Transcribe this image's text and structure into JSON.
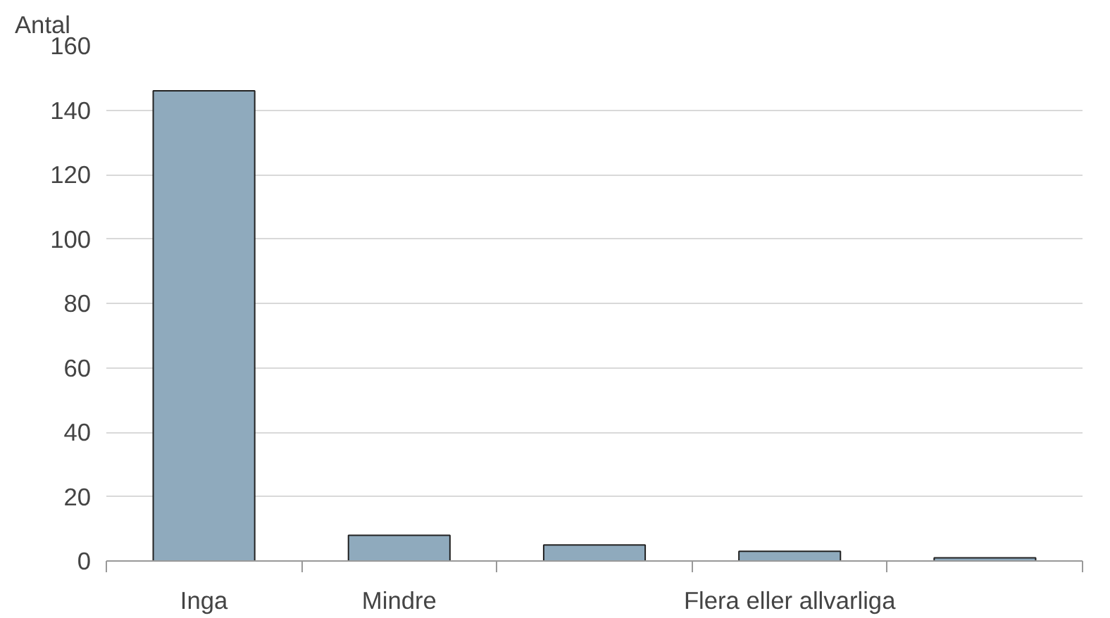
{
  "chart_data": {
    "type": "bar",
    "ylabel": "Antal",
    "categories": [
      "Inga",
      "Mindre",
      null,
      "Flera eller allvarliga",
      null
    ],
    "values": [
      146,
      8,
      5,
      3,
      1
    ],
    "color": "#8faabd",
    "ylim": [
      0,
      160
    ],
    "yticks": [
      0,
      20,
      40,
      60,
      80,
      100,
      120,
      140,
      160
    ],
    "grid": "y"
  }
}
